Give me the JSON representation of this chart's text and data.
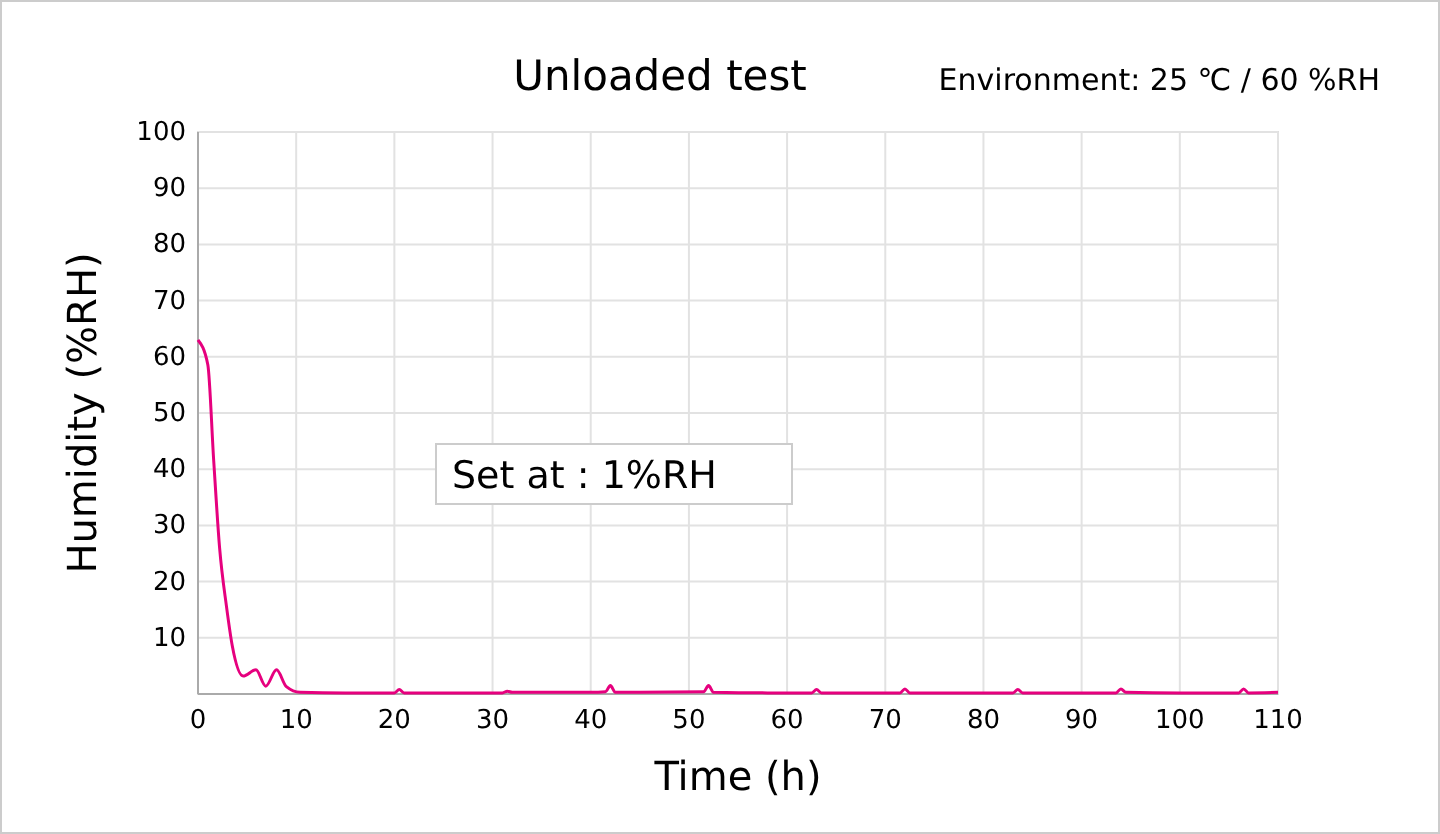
{
  "chart_data": {
    "type": "line",
    "title": "Unloaded test",
    "xlabel": "Time (h)",
    "ylabel": "Humidity (%RH)",
    "annotations": [
      "Environment:  25 ℃ / 60 %RH",
      "Set at :  1%RH"
    ],
    "xlim": [
      0,
      110
    ],
    "xticks": [
      0,
      10,
      20,
      30,
      40,
      50,
      60,
      70,
      80,
      90,
      100,
      110
    ],
    "ylim": [
      0,
      100
    ],
    "yticks": [
      10,
      20,
      30,
      40,
      50,
      60,
      70,
      80,
      90,
      100
    ],
    "grid": true,
    "line_style": "solid",
    "marker": "none",
    "series": [
      {
        "color": "#e6007e",
        "x": [
          0,
          1,
          1.6,
          2.2,
          2.9,
          3.5,
          4.6,
          5.9,
          6.9,
          8,
          9,
          10.4,
          15,
          20,
          20.5,
          21,
          25,
          31,
          31.5,
          32,
          40,
          41.5,
          42,
          42.5,
          45,
          51.5,
          52,
          52.5,
          58,
          62.5,
          63,
          63.5,
          70,
          71.5,
          72,
          72.5,
          80,
          83,
          83.5,
          84,
          90,
          93.5,
          94,
          94.5,
          100,
          106,
          106.5,
          107,
          110
        ],
        "values": [
          63,
          58.6,
          41.5,
          26,
          15.6,
          8.5,
          3.2,
          4.3,
          1.4,
          4.3,
          1.3,
          0.3,
          0.2,
          0.2,
          0.8,
          0.2,
          0.2,
          0.2,
          0.5,
          0.3,
          0.3,
          0.4,
          1.5,
          0.3,
          0.3,
          0.4,
          1.5,
          0.3,
          0.2,
          0.2,
          0.8,
          0.2,
          0.2,
          0.2,
          0.9,
          0.2,
          0.2,
          0.2,
          0.8,
          0.2,
          0.2,
          0.2,
          0.9,
          0.3,
          0.2,
          0.2,
          0.9,
          0.2,
          0.3
        ]
      }
    ]
  }
}
